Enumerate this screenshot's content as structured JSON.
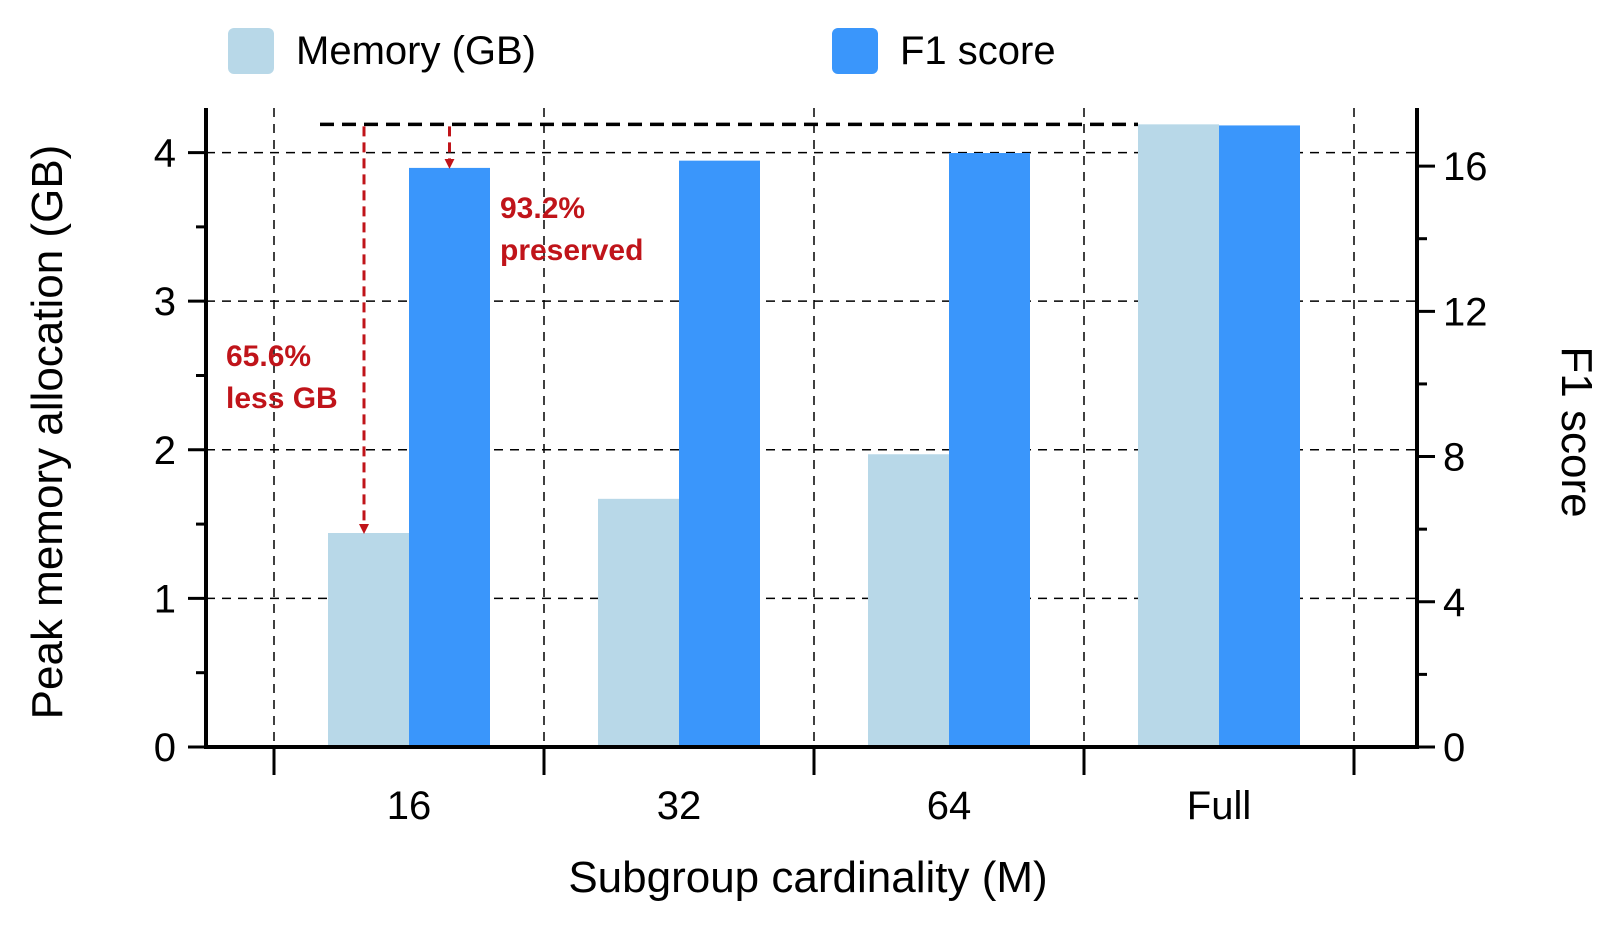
{
  "chart_data": {
    "type": "bar",
    "categories": [
      "16",
      "32",
      "64",
      "Full"
    ],
    "xlabel": "Subgroup cardinality (M)",
    "ylabel": "Peak memory allocation (GB)",
    "y2label": "F1 score",
    "ylim": [
      0,
      4.3
    ],
    "y2lim": [
      0,
      17.6
    ],
    "yticks": [
      "0",
      "1",
      "2",
      "3",
      "4"
    ],
    "y2ticks": [
      "0",
      "4",
      "8",
      "12",
      "16"
    ],
    "grid": true,
    "legend_position": "top",
    "series": [
      {
        "name": "Memory (GB)",
        "axis": "left",
        "color": "#b8d8e8",
        "values": [
          1.44,
          1.67,
          1.97,
          4.19
        ]
      },
      {
        "name": "F1 score",
        "axis": "right",
        "color": "#3a96fb",
        "values": [
          15.95,
          16.15,
          16.36,
          17.12
        ]
      }
    ],
    "annotations": [
      {
        "lines": [
          "93.2%",
          "preserved"
        ],
        "color": "#c0141a"
      },
      {
        "lines": [
          "65.6%",
          "less GB"
        ],
        "color": "#c0141a"
      }
    ]
  }
}
